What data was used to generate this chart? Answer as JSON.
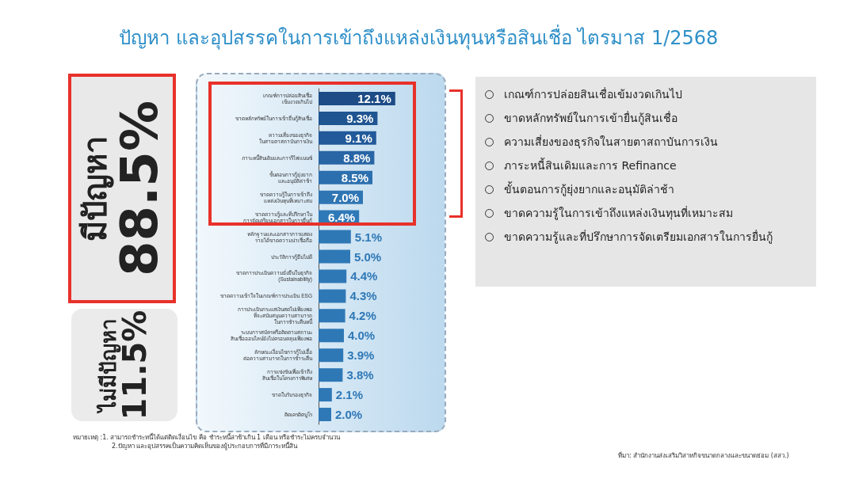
{
  "chart_data": {
    "type": "bar",
    "orientation": "horizontal",
    "title": "ปัญหา และอุปสรรคในการเข้าถึงแหล่งเงินทุนหรือสินเชื่อ ไตรมาส 1/2568",
    "categories": [
      "เกณฑ์การปล่อยสินเชื่อ\nเข้มงวดเกินไป",
      "ขาดหลักทรัพย์ในการเข้ายื่นกู้สินเชื่อ",
      "ความเสี่ยงของธุรกิจ\nในสายตาสถาบันการเงิน",
      "ภาระหนี้สินเดิมและการรีไฟแนนซ์",
      "ขั้นตอนการกู้ยุ่งยาก\nและอนุมัติล่าช้า",
      "ขาดความรู้ในการเข้าถึง\nแหล่งเงินทุนที่เหมาะสม",
      "ขาดความรู้และที่ปรึกษาใน\nการจัดเตรียมเอกสารในการยื่นกู้",
      "หลักฐานและเอกสารการแสดง\nรายได้ขาดความน่าเชื่อถือ",
      "ประวัติการกู้ยืมไม่ดี",
      "ขาดการประเมินความยั่งยืนในธุรกิจ\n(Sustainability)",
      "ขาดความเข้าใจในเกณฑ์การประเมิน ESG",
      "การประเมินกระแสเงินสดไม่เพียงพอ\nที่จะสนับสนุนความสามารถ\nในการชำระคืนหนี้",
      "ระบบการสมัครหรือติดตามสถานะ\nสินเชื่อออนไลน์ยังไม่ครอบคลุมเพียงพอ",
      "ลักษณะเงื่อนไขการกู้ไม่เอื้อ\nต่อความสามารถในการชำระคืน",
      "การแข่งขันเพื่อเข้าถึง\nสินเชื่อในโครงการพิเศษ",
      "ขาดใบรับรองธุรกิจ",
      "ติดเครดิตบูโร"
    ],
    "values": [
      12.1,
      9.3,
      9.1,
      8.8,
      8.5,
      7.0,
      6.4,
      5.1,
      5.0,
      4.4,
      4.3,
      4.2,
      4.0,
      3.9,
      3.8,
      2.1,
      2.0
    ],
    "value_labels": [
      "12.1%",
      "9.3%",
      "9.1%",
      "8.8%",
      "8.5%",
      "7.0%",
      "6.4%",
      "5.1%",
      "5.0%",
      "4.4%",
      "4.3%",
      "4.2%",
      "4.0%",
      "3.9%",
      "3.8%",
      "2.1%",
      "2.0%"
    ],
    "colors": [
      "#1d4c86",
      "#1f5591",
      "#22599a",
      "#2866a5",
      "#2c6fae",
      "#2f75b4",
      "#3079b8",
      "#2f78b6",
      "#2f78b6",
      "#2f78b6",
      "#2f78b6",
      "#2f78b6",
      "#2f78b6",
      "#2f78b6",
      "#2f78b6",
      "#2f78b6",
      "#2f78b6"
    ],
    "annotations": [
      "มีปัญหา",
      "88.5%",
      "ไม่มีปัญหา",
      "11.5%",
      "เกณฑ์การปล่อยสินเชื่อเข้มงวดเกินไป",
      "ขาดหลักทรัพย์ในการเข้ายื่นกู้สินเชื่อ",
      "ความเสี่ยงของธุรกิจในสายตาสถาบันการเงิน",
      "ภาระหนี้สินเดิมและการ Refinance",
      "ขั้นตอนการกู้ยุ่งยากและอนุมัติล่าช้า",
      "ขาดความรู้ในการเข้าถึงแหล่งเงินทุนที่เหมาะสม",
      "ขาดความรู้และที่ปรึกษาการจัดเตรียมเอกสารในการยื่นกู้",
      "หมายเหตุ :1. สามารถชำระหนี้ได้แต่ติดเงื่อนไข คือ ชำระหนี้ล่าช้าเกิน 1 เดือน หรือชำระไม่ครบจำนวน",
      "2.ปัญหา และอุปสรรคเป็นความคิดเห็นของผู้ประกอบการที่มีภาระหนี้สิน",
      "ที่มา: สำนักงานส่งเสริมวิสาหกิจขนาดกลางและขนาดย่อม (สสว.)"
    ]
  }
}
